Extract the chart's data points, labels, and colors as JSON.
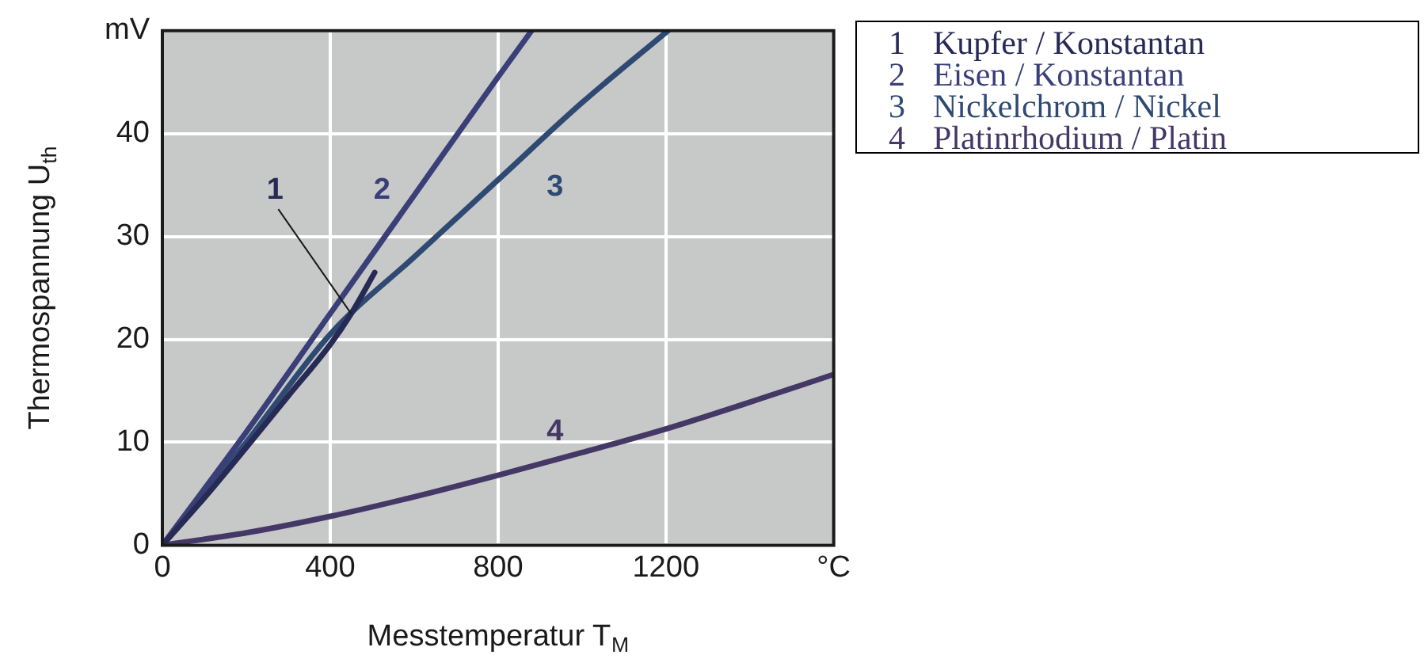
{
  "chart_data": {
    "type": "line",
    "xlabel": "Messtemperatur T$_{M}$",
    "ylabel": "Thermospannung U$_{th}$",
    "xlim": [
      0,
      1600
    ],
    "xticks": [
      0,
      400,
      800,
      1200,
      {
        "value": 1600,
        "label": "°C"
      }
    ],
    "ylim": [
      0,
      50
    ],
    "yticks": [
      0,
      10,
      20,
      30,
      40,
      {
        "value": 50,
        "label": "mV"
      }
    ],
    "grid": true,
    "legend": "right",
    "marker": "none",
    "line_style": "solid",
    "series": [
      {
        "name": "1 Kupfer / Konstantan",
        "color": "#262a55",
        "x": [
          0,
          100,
          200,
          300,
          400,
          450,
          506
        ],
        "values": [
          0,
          4.6,
          9.5,
          14.5,
          19.5,
          22.5,
          26.5
        ]
      },
      {
        "name": "2 Eisen / Konstantan",
        "color": "#3a3f78",
        "x": [
          0,
          200,
          400,
          600,
          800,
          880
        ],
        "values": [
          0,
          11,
          22.5,
          34,
          45.5,
          50
        ]
      },
      {
        "name": "3 Nickelchrom / Nickel",
        "color": "#2f4a72",
        "x": [
          0,
          200,
          400,
          600,
          800,
          1000,
          1205
        ],
        "values": [
          0,
          10,
          20.5,
          28,
          35.5,
          43,
          50
        ]
      },
      {
        "name": "4 Platinrhodium / Platin",
        "color": "#453766",
        "x": [
          0,
          200,
          400,
          600,
          800,
          1000,
          1200,
          1400,
          1600
        ],
        "values": [
          0,
          1.2,
          2.8,
          4.7,
          6.8,
          9,
          11.3,
          13.9,
          16.6
        ]
      }
    ],
    "annotations": [
      {
        "text": "1",
        "x": 450,
        "y": 22.5
      },
      "2",
      "3",
      "4"
    ]
  }
}
